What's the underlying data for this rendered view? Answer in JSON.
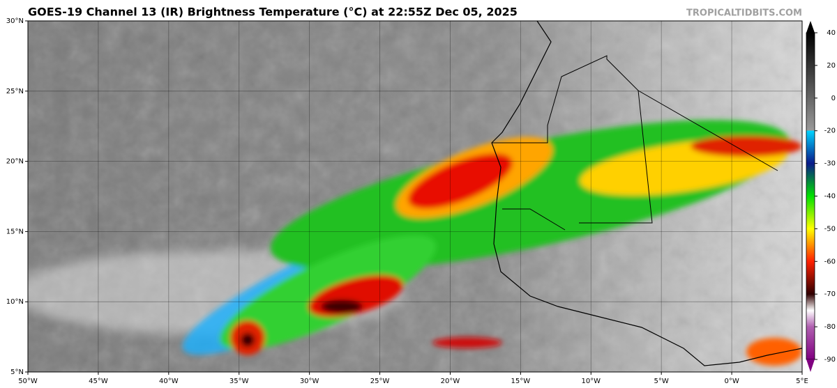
{
  "header": {
    "title": "GOES-19 Channel 13 (IR) Brightness Temperature (°C) at 22:55Z Dec 05, 2025",
    "watermark": "TROPICALTIDBITS.COM"
  },
  "map": {
    "lon_range": [
      -50,
      5
    ],
    "lat_range": [
      5,
      30
    ],
    "lon_ticks": [
      {
        "value": -50,
        "label": "50°W"
      },
      {
        "value": -45,
        "label": "45°W"
      },
      {
        "value": -40,
        "label": "40°W"
      },
      {
        "value": -35,
        "label": "35°W"
      },
      {
        "value": -30,
        "label": "30°W"
      },
      {
        "value": -25,
        "label": "25°W"
      },
      {
        "value": -20,
        "label": "20°W"
      },
      {
        "value": -15,
        "label": "15°W"
      },
      {
        "value": -10,
        "label": "10°W"
      },
      {
        "value": -5,
        "label": "5°W"
      },
      {
        "value": 0,
        "label": "0°W"
      },
      {
        "value": 5,
        "label": "5°E"
      }
    ],
    "lat_ticks": [
      {
        "value": 30,
        "label": "30°N"
      },
      {
        "value": 25,
        "label": "25°N"
      },
      {
        "value": 20,
        "label": "20°N"
      },
      {
        "value": 15,
        "label": "15°N"
      },
      {
        "value": 10,
        "label": "10°N"
      },
      {
        "value": 5,
        "label": "5°N"
      }
    ]
  },
  "colorbar": {
    "ticks": [
      40,
      20,
      0,
      -20,
      -30,
      -40,
      -50,
      -60,
      -70,
      -80,
      -90
    ]
  }
}
